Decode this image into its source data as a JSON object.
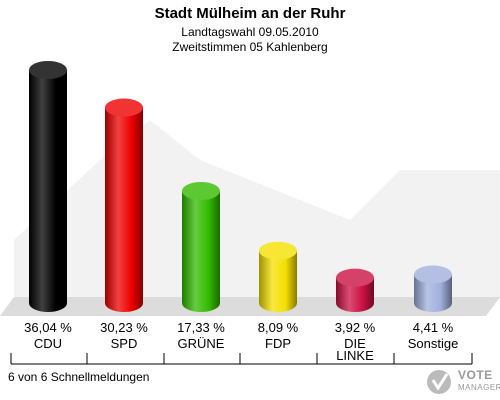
{
  "header": {
    "title": "Stadt Mülheim an der Ruhr",
    "subtitle1": "Landtagswahl 09.05.2010",
    "subtitle2": "Zweitstimmen 05 Kahlenberg"
  },
  "chart_data": {
    "type": "bar",
    "categories": [
      "CDU",
      "SPD",
      "GRÜNE",
      "FDP",
      "DIE LINKE",
      "Sonstige"
    ],
    "category_lines": [
      [
        "CDU"
      ],
      [
        "SPD"
      ],
      [
        "GRÜNE"
      ],
      [
        "FDP"
      ],
      [
        "DIE",
        "LINKE"
      ],
      [
        "Sonstige"
      ]
    ],
    "values": [
      36.04,
      30.23,
      17.33,
      8.09,
      3.92,
      4.41
    ],
    "value_labels": [
      "36,04 %",
      "30,23 %",
      "17,33 %",
      "8,09 %",
      "3,92 %",
      "4,41 %"
    ],
    "colors": [
      "#000000",
      "#ee0000",
      "#33bb00",
      "#f5e000",
      "#cc1144",
      "#a0b0dd"
    ],
    "title": "Stadt Mülheim an der Ruhr",
    "ylim": [
      0,
      36.04
    ],
    "grid": false,
    "legend": "none"
  },
  "footer": {
    "note": "6 von 6 Schnellmeldungen",
    "logo_main": "VOTE",
    "logo_sub": "MANAGER"
  }
}
